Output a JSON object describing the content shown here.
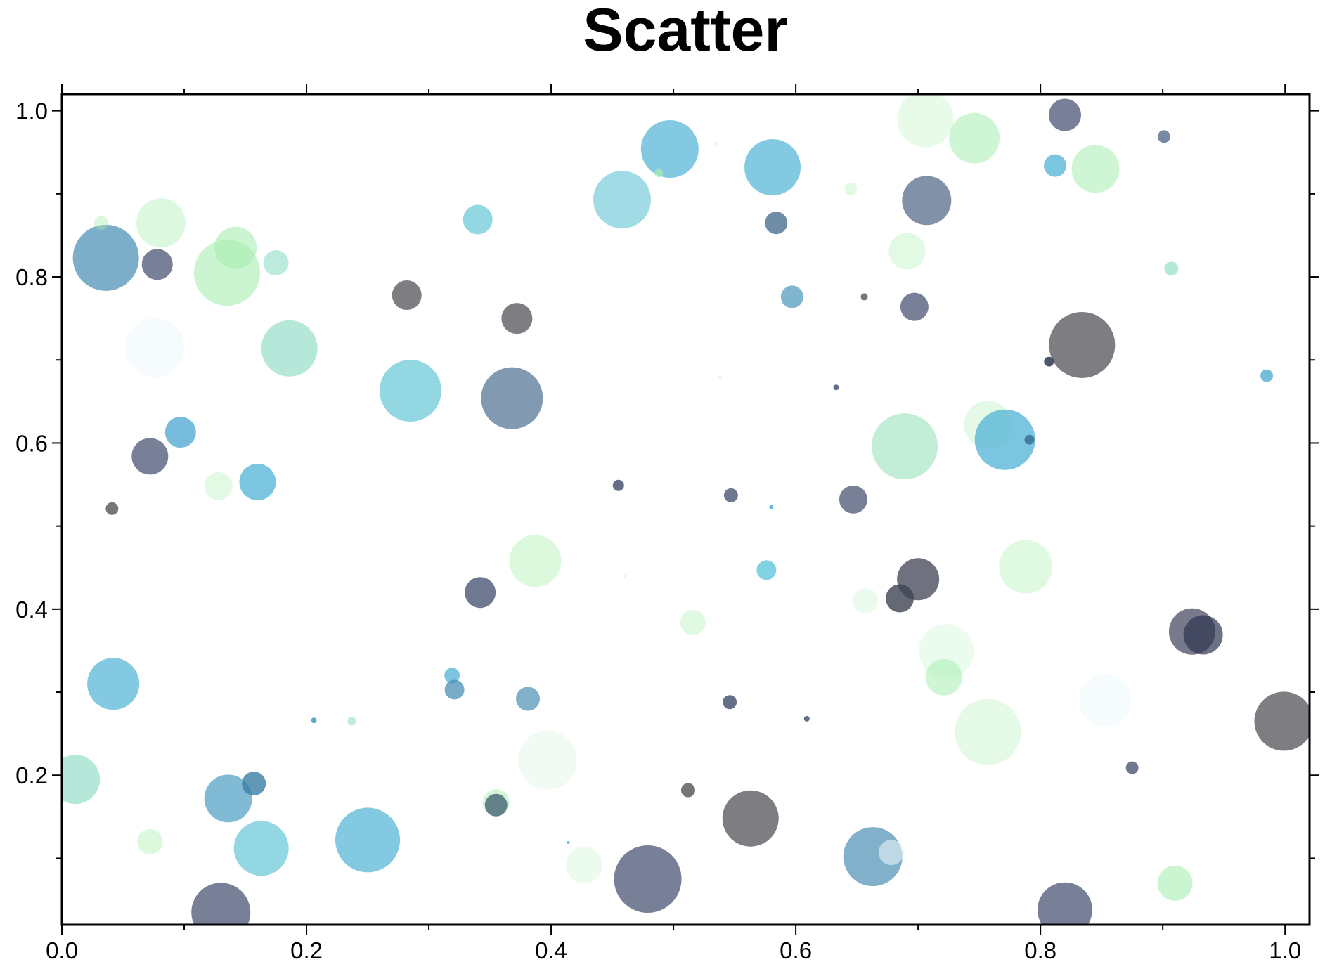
{
  "chart_data": {
    "type": "scatter",
    "title": "Scatter",
    "xlabel": "",
    "ylabel": "",
    "xlim": [
      0.0,
      1.02
    ],
    "ylim": [
      0.02,
      1.02
    ],
    "xticks": [
      "0.0",
      "0.2",
      "0.4",
      "0.6",
      "0.8",
      "1.0"
    ],
    "yticks": [
      "0.2",
      "0.4",
      "0.6",
      "0.8",
      "1.0"
    ],
    "grid": false,
    "legend": "none",
    "colors": {
      "navy": "#4b5675",
      "gray": "#5d5d63",
      "blue": "#4fb2d6",
      "teal": "#6fc9d8",
      "mint": "#8fdcc4",
      "green": "#a8eeb0",
      "pale": "#d8f7dc"
    },
    "points": [
      {
        "x": 0.036,
        "y": 0.823,
        "r": 47,
        "c": "#4a8fb4",
        "a": 0.72
      },
      {
        "x": 0.078,
        "y": 0.815,
        "r": 22,
        "c": "#4b5675",
        "a": 0.75
      },
      {
        "x": 0.032,
        "y": 0.865,
        "r": 10,
        "c": "#a8eeb0",
        "a": 0.4
      },
      {
        "x": 0.081,
        "y": 0.865,
        "r": 35,
        "c": "#a8eeb0",
        "a": 0.4
      },
      {
        "x": 0.135,
        "y": 0.805,
        "r": 47,
        "c": "#a8eeb0",
        "a": 0.6
      },
      {
        "x": 0.142,
        "y": 0.835,
        "r": 30,
        "c": "#a8eeb0",
        "a": 0.6
      },
      {
        "x": 0.175,
        "y": 0.817,
        "r": 18,
        "c": "#8fdcc4",
        "a": 0.6
      },
      {
        "x": 0.076,
        "y": 0.715,
        "r": 42,
        "c": "#e8f6fa",
        "a": 0.4
      },
      {
        "x": 0.186,
        "y": 0.714,
        "r": 40,
        "c": "#8fdcc4",
        "a": 0.65
      },
      {
        "x": 0.282,
        "y": 0.778,
        "r": 21,
        "c": "#5d5d63",
        "a": 0.8
      },
      {
        "x": 0.34,
        "y": 0.869,
        "r": 21,
        "c": "#6fc9d8",
        "a": 0.75
      },
      {
        "x": 0.372,
        "y": 0.75,
        "r": 22,
        "c": "#5d5d63",
        "a": 0.8
      },
      {
        "x": 0.285,
        "y": 0.663,
        "r": 44,
        "c": "#6fc9d8",
        "a": 0.75
      },
      {
        "x": 0.368,
        "y": 0.654,
        "r": 44,
        "c": "#4b6f91",
        "a": 0.7
      },
      {
        "x": 0.097,
        "y": 0.613,
        "r": 22,
        "c": "#3ea0cf",
        "a": 0.7
      },
      {
        "x": 0.072,
        "y": 0.584,
        "r": 26,
        "c": "#4b5675",
        "a": 0.75
      },
      {
        "x": 0.128,
        "y": 0.548,
        "r": 20,
        "c": "#c5f5c8",
        "a": 0.5
      },
      {
        "x": 0.16,
        "y": 0.553,
        "r": 26,
        "c": "#4fb2d6",
        "a": 0.75
      },
      {
        "x": 0.041,
        "y": 0.521,
        "r": 9,
        "c": "#5d5d63",
        "a": 0.85
      },
      {
        "x": 0.458,
        "y": 0.893,
        "r": 41,
        "c": "#6fc9d8",
        "a": 0.65
      },
      {
        "x": 0.497,
        "y": 0.954,
        "r": 41,
        "c": "#4fb2d6",
        "a": 0.7
      },
      {
        "x": 0.488,
        "y": 0.925,
        "r": 6,
        "c": "#a8eeb0",
        "a": 0.7
      },
      {
        "x": 0.581,
        "y": 0.932,
        "r": 40,
        "c": "#4fb2d6",
        "a": 0.7
      },
      {
        "x": 0.584,
        "y": 0.865,
        "r": 16,
        "c": "#4b6f91",
        "a": 0.8
      },
      {
        "x": 0.597,
        "y": 0.776,
        "r": 16,
        "c": "#4a96bc",
        "a": 0.7
      },
      {
        "x": 0.645,
        "y": 0.906,
        "r": 9,
        "c": "#c5f5c8",
        "a": 0.5
      },
      {
        "x": 0.656,
        "y": 0.776,
        "r": 5,
        "c": "#5d5d63",
        "a": 0.85
      },
      {
        "x": 0.706,
        "y": 0.99,
        "r": 40,
        "c": "#c5f5c8",
        "a": 0.4
      },
      {
        "x": 0.746,
        "y": 0.967,
        "r": 36,
        "c": "#a8eeb0",
        "a": 0.55
      },
      {
        "x": 0.707,
        "y": 0.892,
        "r": 35,
        "c": "#4b6382",
        "a": 0.7
      },
      {
        "x": 0.691,
        "y": 0.831,
        "r": 26,
        "c": "#c5f5c8",
        "a": 0.5
      },
      {
        "x": 0.697,
        "y": 0.764,
        "r": 20,
        "c": "#4b5675",
        "a": 0.75
      },
      {
        "x": 0.82,
        "y": 0.995,
        "r": 23,
        "c": "#4b5675",
        "a": 0.75
      },
      {
        "x": 0.812,
        "y": 0.934,
        "r": 16,
        "c": "#4fb2d6",
        "a": 0.75
      },
      {
        "x": 0.845,
        "y": 0.93,
        "r": 34,
        "c": "#a8eeb0",
        "a": 0.55
      },
      {
        "x": 0.901,
        "y": 0.969,
        "r": 9,
        "c": "#4b6382",
        "a": 0.75
      },
      {
        "x": 0.907,
        "y": 0.81,
        "r": 10,
        "c": "#8fdcc4",
        "a": 0.65
      },
      {
        "x": 0.834,
        "y": 0.718,
        "r": 47,
        "c": "#5d5d63",
        "a": 0.8
      },
      {
        "x": 0.807,
        "y": 0.698,
        "r": 7,
        "c": "#2d3a55",
        "a": 0.85
      },
      {
        "x": 0.985,
        "y": 0.681,
        "r": 9,
        "c": "#4aa6cf",
        "a": 0.75
      },
      {
        "x": 0.633,
        "y": 0.667,
        "r": 4,
        "c": "#4b5675",
        "a": 0.85
      },
      {
        "x": 0.538,
        "y": 0.679,
        "r": 3,
        "c": "#c5f5c8",
        "a": 0.5
      },
      {
        "x": 0.535,
        "y": 0.96,
        "r": 2,
        "c": "#c5f5c8",
        "a": 0.5
      },
      {
        "x": 0.689,
        "y": 0.596,
        "r": 47,
        "c": "#8fe0b8",
        "a": 0.55
      },
      {
        "x": 0.757,
        "y": 0.622,
        "r": 34,
        "c": "#c5f5c8",
        "a": 0.45
      },
      {
        "x": 0.771,
        "y": 0.604,
        "r": 43,
        "c": "#4fb2d6",
        "a": 0.75
      },
      {
        "x": 0.791,
        "y": 0.604,
        "r": 7,
        "c": "#3a6e90",
        "a": 0.85
      },
      {
        "x": 0.455,
        "y": 0.549,
        "r": 8,
        "c": "#4b5675",
        "a": 0.85
      },
      {
        "x": 0.547,
        "y": 0.537,
        "r": 10,
        "c": "#4b5675",
        "a": 0.8
      },
      {
        "x": 0.58,
        "y": 0.523,
        "r": 3,
        "c": "#4fb2d6",
        "a": 0.85
      },
      {
        "x": 0.647,
        "y": 0.532,
        "r": 20,
        "c": "#4b5675",
        "a": 0.75
      },
      {
        "x": 0.387,
        "y": 0.458,
        "r": 37,
        "c": "#c5f5c8",
        "a": 0.6
      },
      {
        "x": 0.342,
        "y": 0.42,
        "r": 22,
        "c": "#4b5675",
        "a": 0.8
      },
      {
        "x": 0.576,
        "y": 0.447,
        "r": 14,
        "c": "#4fbfd9",
        "a": 0.7
      },
      {
        "x": 0.46,
        "y": 0.44,
        "r": 2,
        "c": "#c5f5c8",
        "a": 0.5
      },
      {
        "x": 0.657,
        "y": 0.41,
        "r": 18,
        "c": "#d8f7dc",
        "a": 0.5
      },
      {
        "x": 0.7,
        "y": 0.436,
        "r": 30,
        "c": "#4b4f5e",
        "a": 0.8
      },
      {
        "x": 0.685,
        "y": 0.413,
        "r": 20,
        "c": "#3f4352",
        "a": 0.8
      },
      {
        "x": 0.788,
        "y": 0.451,
        "r": 38,
        "c": "#c5f5c8",
        "a": 0.55
      },
      {
        "x": 0.516,
        "y": 0.384,
        "r": 18,
        "c": "#c5f5c8",
        "a": 0.55
      },
      {
        "x": 0.723,
        "y": 0.349,
        "r": 39,
        "c": "#d8f7dc",
        "a": 0.5
      },
      {
        "x": 0.721,
        "y": 0.318,
        "r": 26,
        "c": "#a8eeb0",
        "a": 0.55
      },
      {
        "x": 0.924,
        "y": 0.373,
        "r": 33,
        "c": "#3d415a",
        "a": 0.7
      },
      {
        "x": 0.933,
        "y": 0.369,
        "r": 28,
        "c": "#2d3450",
        "a": 0.7
      },
      {
        "x": 0.853,
        "y": 0.29,
        "r": 37,
        "c": "#eef7fb",
        "a": 0.5
      },
      {
        "x": 0.999,
        "y": 0.265,
        "r": 42,
        "c": "#5d5d63",
        "a": 0.8
      },
      {
        "x": 0.757,
        "y": 0.252,
        "r": 47,
        "c": "#c5f5c8",
        "a": 0.45
      },
      {
        "x": 0.875,
        "y": 0.209,
        "r": 9,
        "c": "#4b5675",
        "a": 0.8
      },
      {
        "x": 0.042,
        "y": 0.31,
        "r": 37,
        "c": "#4fb2d6",
        "a": 0.7
      },
      {
        "x": 0.011,
        "y": 0.195,
        "r": 35,
        "c": "#8fdcc4",
        "a": 0.65
      },
      {
        "x": 0.206,
        "y": 0.266,
        "r": 4,
        "c": "#4a96bc",
        "a": 0.85
      },
      {
        "x": 0.237,
        "y": 0.265,
        "r": 6,
        "c": "#a8e6c4",
        "a": 0.7
      },
      {
        "x": 0.319,
        "y": 0.32,
        "r": 11,
        "c": "#4fb2d6",
        "a": 0.75
      },
      {
        "x": 0.321,
        "y": 0.303,
        "r": 14,
        "c": "#4a8fb4",
        "a": 0.75
      },
      {
        "x": 0.381,
        "y": 0.292,
        "r": 17,
        "c": "#4a8fb4",
        "a": 0.7
      },
      {
        "x": 0.397,
        "y": 0.218,
        "r": 42,
        "c": "#e5f7e8",
        "a": 0.5
      },
      {
        "x": 0.546,
        "y": 0.288,
        "r": 10,
        "c": "#4b5675",
        "a": 0.85
      },
      {
        "x": 0.609,
        "y": 0.268,
        "r": 4,
        "c": "#4b5675",
        "a": 0.85
      },
      {
        "x": 0.512,
        "y": 0.182,
        "r": 10,
        "c": "#5d5d63",
        "a": 0.85
      },
      {
        "x": 0.136,
        "y": 0.172,
        "r": 34,
        "c": "#4a9cc2",
        "a": 0.7
      },
      {
        "x": 0.157,
        "y": 0.19,
        "r": 17,
        "c": "#3a7ea6",
        "a": 0.8
      },
      {
        "x": 0.163,
        "y": 0.112,
        "r": 39,
        "c": "#6fc9d8",
        "a": 0.75
      },
      {
        "x": 0.072,
        "y": 0.12,
        "r": 18,
        "c": "#c5f5c8",
        "a": 0.6
      },
      {
        "x": 0.25,
        "y": 0.122,
        "r": 46,
        "c": "#4fb2d6",
        "a": 0.7
      },
      {
        "x": 0.355,
        "y": 0.167,
        "r": 19,
        "c": "#a8eeb0",
        "a": 0.5
      },
      {
        "x": 0.355,
        "y": 0.164,
        "r": 16,
        "c": "#3e5a6e",
        "a": 0.75
      },
      {
        "x": 0.414,
        "y": 0.119,
        "r": 2,
        "c": "#4fb2d6",
        "a": 0.85
      },
      {
        "x": 0.427,
        "y": 0.092,
        "r": 26,
        "c": "#d8f7dc",
        "a": 0.5
      },
      {
        "x": 0.479,
        "y": 0.075,
        "r": 48,
        "c": "#4b5675",
        "a": 0.75
      },
      {
        "x": 0.563,
        "y": 0.148,
        "r": 40,
        "c": "#5d5d63",
        "a": 0.8
      },
      {
        "x": 0.663,
        "y": 0.102,
        "r": 42,
        "c": "#4a8fb4",
        "a": 0.7
      },
      {
        "x": 0.678,
        "y": 0.107,
        "r": 18,
        "c": "#e0eef4",
        "a": 0.65
      },
      {
        "x": 0.13,
        "y": 0.035,
        "r": 42,
        "c": "#4b5675",
        "a": 0.75
      },
      {
        "x": 0.82,
        "y": 0.038,
        "r": 39,
        "c": "#4b5675",
        "a": 0.75
      },
      {
        "x": 0.91,
        "y": 0.07,
        "r": 25,
        "c": "#a8eeb0",
        "a": 0.6
      }
    ]
  }
}
